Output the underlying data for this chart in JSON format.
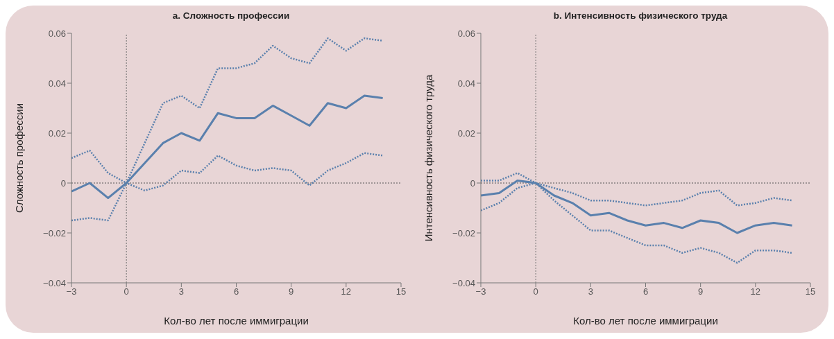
{
  "chart_data": [
    {
      "type": "line",
      "title": "a. Сложность профессии",
      "xlabel": "Кол-во лет после иммиграции",
      "ylabel": "Сложность профессии",
      "x": [
        -3,
        -2,
        -1,
        0,
        1,
        2,
        3,
        4,
        5,
        6,
        7,
        8,
        9,
        10,
        11,
        12,
        13,
        14
      ],
      "series": [
        {
          "color": "#5a80ad",
          "line_style": "solid",
          "values": [
            -0.0034,
            0,
            -0.006,
            0,
            0.008,
            0.016,
            0.02,
            0.017,
            0.028,
            0.026,
            0.026,
            0.031,
            0.027,
            0.023,
            0.032,
            0.03,
            0.035,
            0.034
          ]
        },
        {
          "color": "#5a80ad",
          "line_style": "dotted",
          "values": [
            0.01,
            0.013,
            0.004,
            0,
            0.016,
            0.032,
            0.035,
            0.03,
            0.046,
            0.046,
            0.048,
            0.055,
            0.05,
            0.048,
            0.058,
            0.053,
            0.058,
            0.057
          ]
        },
        {
          "color": "#5a80ad",
          "line_style": "dotted",
          "values": [
            -0.015,
            -0.014,
            -0.015,
            0,
            -0.003,
            -0.001,
            0.005,
            0.004,
            0.011,
            0.007,
            0.005,
            0.006,
            0.005,
            -0.001,
            0.005,
            0.008,
            0.012,
            0.011
          ]
        }
      ],
      "xlim": [
        -3,
        15
      ],
      "xticks": [
        -3,
        0,
        3,
        6,
        9,
        12,
        15
      ],
      "ylim": [
        -0.04,
        0.06
      ],
      "yticks": [
        -0.04,
        -0.02,
        0,
        0.02,
        0.04,
        0.06
      ],
      "ref_lines": [
        {
          "axis": "y",
          "value": 0,
          "line_style": "dotted",
          "color": "#555555"
        },
        {
          "axis": "x",
          "value": 0,
          "line_style": "dotted",
          "color": "#6e6e6e"
        }
      ],
      "grid": false
    },
    {
      "type": "line",
      "title": "b. Интенсивность физического труда",
      "xlabel": "Кол-во лет после иммиграции",
      "ylabel": "Интенсивность физического труда",
      "x": [
        -3,
        -2,
        -1,
        0,
        1,
        2,
        3,
        4,
        5,
        6,
        7,
        8,
        9,
        10,
        11,
        12,
        13,
        14
      ],
      "series": [
        {
          "color": "#5a80ad",
          "line_style": "solid",
          "values": [
            -0.005,
            -0.004,
            0.001,
            0,
            -0.005,
            -0.008,
            -0.013,
            -0.012,
            -0.015,
            -0.017,
            -0.016,
            -0.018,
            -0.015,
            -0.016,
            -0.02,
            -0.017,
            -0.016,
            -0.017
          ]
        },
        {
          "color": "#5a80ad",
          "line_style": "dotted",
          "values": [
            0.001,
            0.001,
            0.004,
            0,
            -0.002,
            -0.004,
            -0.007,
            -0.007,
            -0.008,
            -0.009,
            -0.008,
            -0.007,
            -0.004,
            -0.003,
            -0.009,
            -0.008,
            -0.006,
            -0.007
          ]
        },
        {
          "color": "#5a80ad",
          "line_style": "dotted",
          "values": [
            -0.011,
            -0.008,
            -0.002,
            0,
            -0.007,
            -0.013,
            -0.019,
            -0.019,
            -0.022,
            -0.025,
            -0.025,
            -0.028,
            -0.026,
            -0.028,
            -0.032,
            -0.027,
            -0.027,
            -0.028
          ]
        }
      ],
      "xlim": [
        -3,
        15
      ],
      "xticks": [
        -3,
        0,
        3,
        6,
        9,
        12,
        15
      ],
      "ylim": [
        -0.04,
        0.06
      ],
      "yticks": [
        -0.04,
        -0.02,
        0,
        0.02,
        0.04,
        0.06
      ],
      "ref_lines": [
        {
          "axis": "y",
          "value": 0,
          "line_style": "dotted",
          "color": "#555555"
        },
        {
          "axis": "x",
          "value": 0,
          "line_style": "dotted",
          "color": "#6e6e6e"
        }
      ],
      "grid": false
    }
  ]
}
